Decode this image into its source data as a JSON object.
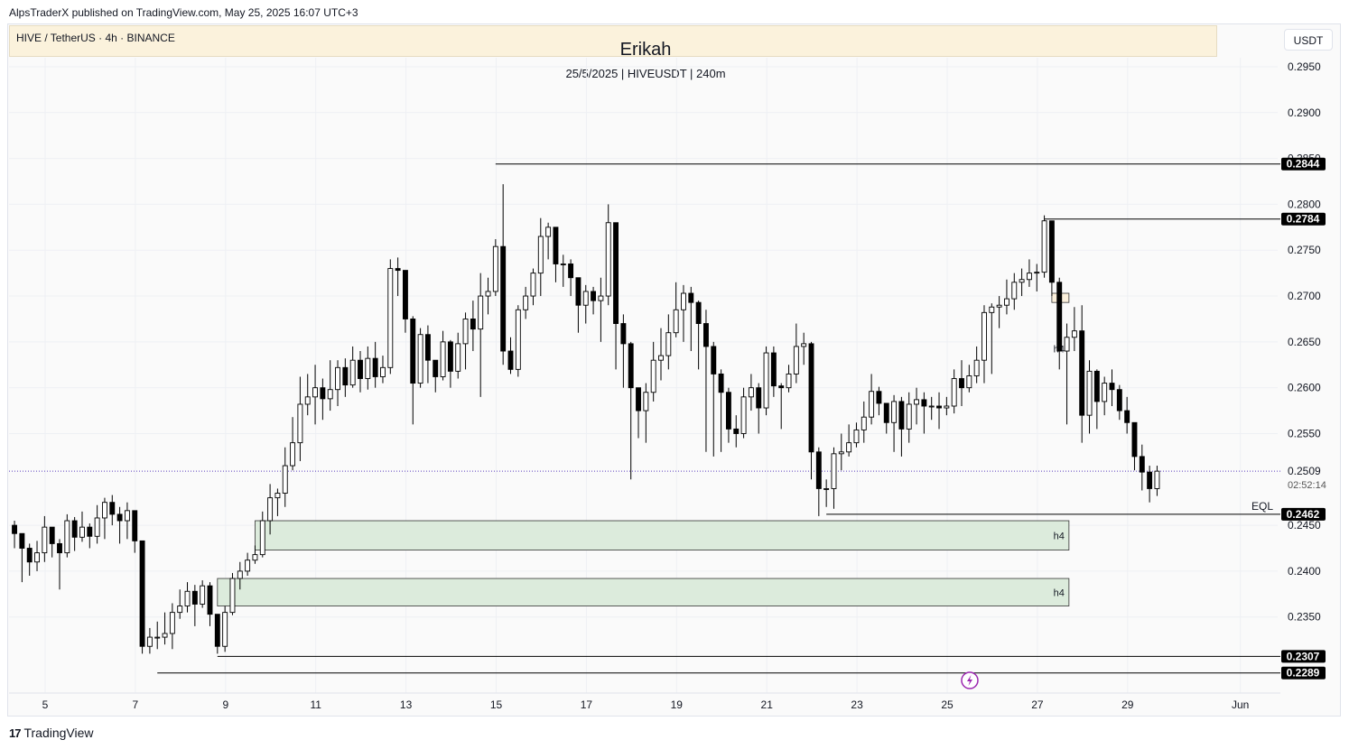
{
  "header": {
    "publisher": "AlpsTraderX published on TradingView.com, May 25, 2025 16:07 UTC+3",
    "symbol_info": "HIVE / TetherUS · 4h · BINANCE",
    "title": "Erikah",
    "subtitle": "25/5/2025 | HIVEUSDT | 240m",
    "currency": "USDT"
  },
  "footer": {
    "brand": "TradingView",
    "brand_logo": "17"
  },
  "colors": {
    "up_body": "#ffffff",
    "down_body": "#000000",
    "wick": "#000000",
    "demand_zone": "#dcebdc",
    "supply_zone": "#fbf0dc",
    "price_line": "#5a3ebd",
    "lightning": "#9c27b0"
  },
  "icons": {
    "lightning": "lightning-icon"
  },
  "chart_data": {
    "type": "candlestick",
    "timeframe": "4h",
    "x_tick_labels": [
      "5",
      "7",
      "9",
      "11",
      "13",
      "15",
      "17",
      "19",
      "21",
      "23",
      "25",
      "27",
      "29",
      "Jun"
    ],
    "y_tick_labels": [
      "0.2950",
      "0.2900",
      "0.2850",
      "0.2800",
      "0.2750",
      "0.2700",
      "0.2650",
      "0.2600",
      "0.2550",
      "0.2450",
      "0.2400",
      "0.2350"
    ],
    "ylim": [
      0.2262,
      0.2983
    ],
    "xlim_days": [
      4.0,
      31.5
    ],
    "last_price": "0.2509",
    "countdown": "02:52:14",
    "price_labels": [
      "0.2844",
      "0.2784",
      "0.2462",
      "0.2307",
      "0.2289"
    ],
    "eql_label": "EQL",
    "zone_label": "h4",
    "candles": [
      [
        0.245,
        0.2441,
        0.2455,
        0.2425
      ],
      [
        0.2441,
        0.2425,
        0.2441,
        0.2388
      ],
      [
        0.2425,
        0.241,
        0.243,
        0.2395
      ],
      [
        0.241,
        0.242,
        0.2433,
        0.24
      ],
      [
        0.242,
        0.2448,
        0.246,
        0.241
      ],
      [
        0.2448,
        0.243,
        0.2448,
        0.2415
      ],
      [
        0.243,
        0.242,
        0.2435,
        0.238
      ],
      [
        0.242,
        0.2455,
        0.2462,
        0.2415
      ],
      [
        0.2455,
        0.2437,
        0.2459,
        0.2422
      ],
      [
        0.2437,
        0.2448,
        0.2465,
        0.2432
      ],
      [
        0.2448,
        0.2438,
        0.2452,
        0.2425
      ],
      [
        0.2438,
        0.2458,
        0.2472,
        0.243
      ],
      [
        0.2458,
        0.2475,
        0.248,
        0.2435
      ],
      [
        0.2475,
        0.2462,
        0.2483,
        0.245
      ],
      [
        0.2462,
        0.2455,
        0.247,
        0.243
      ],
      [
        0.2455,
        0.2466,
        0.2475,
        0.2435
      ],
      [
        0.2466,
        0.2433,
        0.2466,
        0.242
      ],
      [
        0.2433,
        0.2318,
        0.2433,
        0.231
      ],
      [
        0.2318,
        0.2328,
        0.2338,
        0.231
      ],
      [
        0.2328,
        0.2328,
        0.2345,
        0.2315
      ],
      [
        0.2328,
        0.2332,
        0.2355,
        0.232
      ],
      [
        0.2332,
        0.2355,
        0.2365,
        0.2315
      ],
      [
        0.2355,
        0.2362,
        0.238,
        0.2348
      ],
      [
        0.2362,
        0.2378,
        0.2388,
        0.2355
      ],
      [
        0.2378,
        0.2364,
        0.2385,
        0.234
      ],
      [
        0.2364,
        0.2384,
        0.239,
        0.236
      ],
      [
        0.2384,
        0.2353,
        0.2388,
        0.234
      ],
      [
        0.2353,
        0.2318,
        0.2353,
        0.231
      ],
      [
        0.2318,
        0.2355,
        0.2362,
        0.2312
      ],
      [
        0.2355,
        0.2392,
        0.2398,
        0.2352
      ],
      [
        0.2392,
        0.24,
        0.241,
        0.238
      ],
      [
        0.24,
        0.2412,
        0.242,
        0.2395
      ],
      [
        0.2412,
        0.2418,
        0.2428,
        0.2408
      ],
      [
        0.2418,
        0.2455,
        0.2465,
        0.2415
      ],
      [
        0.2455,
        0.248,
        0.2495,
        0.244
      ],
      [
        0.248,
        0.2485,
        0.249,
        0.246
      ],
      [
        0.2485,
        0.2515,
        0.2535,
        0.247
      ],
      [
        0.2515,
        0.254,
        0.2568,
        0.251
      ],
      [
        0.254,
        0.2582,
        0.2612,
        0.252
      ],
      [
        0.2582,
        0.259,
        0.2615,
        0.257
      ],
      [
        0.259,
        0.26,
        0.2625,
        0.256
      ],
      [
        0.26,
        0.2588,
        0.261,
        0.2565
      ],
      [
        0.2588,
        0.2598,
        0.263,
        0.2575
      ],
      [
        0.2598,
        0.2622,
        0.263,
        0.258
      ],
      [
        0.2622,
        0.2603,
        0.2632,
        0.259
      ],
      [
        0.2603,
        0.263,
        0.2645,
        0.26
      ],
      [
        0.263,
        0.261,
        0.264,
        0.2595
      ],
      [
        0.261,
        0.2632,
        0.2645,
        0.2598
      ],
      [
        0.2632,
        0.2612,
        0.265,
        0.26
      ],
      [
        0.2612,
        0.2622,
        0.2635,
        0.2605
      ],
      [
        0.2622,
        0.273,
        0.274,
        0.2615
      ],
      [
        0.273,
        0.2728,
        0.2742,
        0.27
      ],
      [
        0.2728,
        0.2675,
        0.2728,
        0.266
      ],
      [
        0.2675,
        0.2605,
        0.2678,
        0.256
      ],
      [
        0.2605,
        0.2658,
        0.2665,
        0.26
      ],
      [
        0.2658,
        0.263,
        0.2668,
        0.2605
      ],
      [
        0.263,
        0.2612,
        0.263,
        0.2595
      ],
      [
        0.2612,
        0.265,
        0.2662,
        0.2608
      ],
      [
        0.265,
        0.2618,
        0.2652,
        0.26
      ],
      [
        0.2618,
        0.2648,
        0.266,
        0.261
      ],
      [
        0.2648,
        0.2675,
        0.2682,
        0.262
      ],
      [
        0.2675,
        0.2664,
        0.2695,
        0.264
      ],
      [
        0.2664,
        0.27,
        0.2725,
        0.259
      ],
      [
        0.27,
        0.2705,
        0.272,
        0.268
      ],
      [
        0.2705,
        0.2754,
        0.2762,
        0.27
      ],
      [
        0.2754,
        0.264,
        0.2822,
        0.2625
      ],
      [
        0.264,
        0.262,
        0.2655,
        0.2615
      ],
      [
        0.262,
        0.2685,
        0.269,
        0.2612
      ],
      [
        0.2685,
        0.27,
        0.271,
        0.2675
      ],
      [
        0.27,
        0.2725,
        0.273,
        0.269
      ],
      [
        0.2725,
        0.2765,
        0.2785,
        0.27
      ],
      [
        0.2765,
        0.2775,
        0.278,
        0.274
      ],
      [
        0.2775,
        0.2735,
        0.2775,
        0.2715
      ],
      [
        0.2735,
        0.2735,
        0.2745,
        0.271
      ],
      [
        0.2735,
        0.272,
        0.274,
        0.27
      ],
      [
        0.272,
        0.269,
        0.272,
        0.266
      ],
      [
        0.269,
        0.2705,
        0.2712,
        0.267
      ],
      [
        0.2705,
        0.2695,
        0.271,
        0.268
      ],
      [
        0.2695,
        0.27,
        0.272,
        0.265
      ],
      [
        0.27,
        0.278,
        0.28,
        0.269
      ],
      [
        0.278,
        0.267,
        0.278,
        0.262
      ],
      [
        0.267,
        0.2648,
        0.268,
        0.26
      ],
      [
        0.2648,
        0.26,
        0.265,
        0.25
      ],
      [
        0.26,
        0.2575,
        0.26,
        0.2545
      ],
      [
        0.2575,
        0.2595,
        0.2605,
        0.254
      ],
      [
        0.2595,
        0.263,
        0.265,
        0.2585
      ],
      [
        0.263,
        0.2635,
        0.2665,
        0.2608
      ],
      [
        0.2635,
        0.266,
        0.268,
        0.262
      ],
      [
        0.266,
        0.2685,
        0.2715,
        0.2655
      ],
      [
        0.2685,
        0.2703,
        0.2712,
        0.265
      ],
      [
        0.2703,
        0.2693,
        0.271,
        0.264
      ],
      [
        0.2693,
        0.267,
        0.2695,
        0.262
      ],
      [
        0.267,
        0.2645,
        0.2685,
        0.253
      ],
      [
        0.2645,
        0.2615,
        0.265,
        0.2525
      ],
      [
        0.2615,
        0.2595,
        0.262,
        0.253
      ],
      [
        0.2595,
        0.2555,
        0.26,
        0.254
      ],
      [
        0.2555,
        0.255,
        0.257,
        0.2535
      ],
      [
        0.255,
        0.259,
        0.26,
        0.2545
      ],
      [
        0.259,
        0.26,
        0.2615,
        0.2575
      ],
      [
        0.26,
        0.2578,
        0.2605,
        0.255
      ],
      [
        0.2578,
        0.2638,
        0.2645,
        0.257
      ],
      [
        0.2638,
        0.2602,
        0.2645,
        0.259
      ],
      [
        0.2602,
        0.26,
        0.2605,
        0.2555
      ],
      [
        0.26,
        0.2615,
        0.2625,
        0.2595
      ],
      [
        0.2615,
        0.2645,
        0.267,
        0.2605
      ],
      [
        0.2645,
        0.2648,
        0.266,
        0.2625
      ],
      [
        0.2648,
        0.253,
        0.265,
        0.25
      ],
      [
        0.253,
        0.249,
        0.2535,
        0.246
      ],
      [
        0.249,
        0.249,
        0.25,
        0.247
      ],
      [
        0.249,
        0.2528,
        0.2535,
        0.2468
      ],
      [
        0.2528,
        0.253,
        0.255,
        0.251
      ],
      [
        0.253,
        0.254,
        0.256,
        0.2525
      ],
      [
        0.254,
        0.2554,
        0.2562,
        0.2535
      ],
      [
        0.2554,
        0.2568,
        0.2585,
        0.254
      ],
      [
        0.2568,
        0.2596,
        0.2615,
        0.256
      ],
      [
        0.2596,
        0.2583,
        0.2601,
        0.257
      ],
      [
        0.2583,
        0.2562,
        0.2583,
        0.255
      ],
      [
        0.2562,
        0.2585,
        0.2592,
        0.253
      ],
      [
        0.2585,
        0.2555,
        0.259,
        0.2525
      ],
      [
        0.2555,
        0.2582,
        0.2595,
        0.254
      ],
      [
        0.2582,
        0.2587,
        0.26,
        0.256
      ],
      [
        0.2587,
        0.258,
        0.2595,
        0.255
      ],
      [
        0.258,
        0.258,
        0.259,
        0.2565
      ],
      [
        0.258,
        0.2578,
        0.2595,
        0.2555
      ],
      [
        0.2578,
        0.258,
        0.259,
        0.257
      ],
      [
        0.258,
        0.261,
        0.262,
        0.2572
      ],
      [
        0.261,
        0.26,
        0.263,
        0.258
      ],
      [
        0.26,
        0.2613,
        0.2625,
        0.2595
      ],
      [
        0.2613,
        0.263,
        0.2645,
        0.2605
      ],
      [
        0.263,
        0.2682,
        0.269,
        0.2605
      ],
      [
        0.2682,
        0.2688,
        0.2692,
        0.2615
      ],
      [
        0.2688,
        0.269,
        0.27,
        0.2665
      ],
      [
        0.269,
        0.2697,
        0.2718,
        0.268
      ],
      [
        0.2697,
        0.2715,
        0.2725,
        0.2685
      ],
      [
        0.2715,
        0.2718,
        0.273,
        0.27
      ],
      [
        0.2718,
        0.2725,
        0.274,
        0.271
      ],
      [
        0.2725,
        0.2726,
        0.2735,
        0.2705
      ],
      [
        0.2726,
        0.2782,
        0.2788,
        0.272
      ],
      [
        0.2782,
        0.2715,
        0.2782,
        0.27
      ],
      [
        0.2715,
        0.264,
        0.272,
        0.262
      ],
      [
        0.264,
        0.2655,
        0.267,
        0.256
      ],
      [
        0.2655,
        0.2662,
        0.2688,
        0.264
      ],
      [
        0.2662,
        0.257,
        0.269,
        0.254
      ],
      [
        0.257,
        0.2618,
        0.263,
        0.255
      ],
      [
        0.2618,
        0.2585,
        0.262,
        0.2555
      ],
      [
        0.2585,
        0.2605,
        0.2612,
        0.257
      ],
      [
        0.2605,
        0.2598,
        0.262,
        0.258
      ],
      [
        0.2598,
        0.2575,
        0.2603,
        0.2565
      ],
      [
        0.2575,
        0.2562,
        0.259,
        0.255
      ],
      [
        0.2562,
        0.2525,
        0.2562,
        0.251
      ],
      [
        0.2525,
        0.2508,
        0.2538,
        0.2488
      ],
      [
        0.2508,
        0.249,
        0.2515,
        0.2475
      ],
      [
        0.249,
        0.2509,
        0.2515,
        0.2482
      ]
    ],
    "levels": [
      {
        "price": 0.2844,
        "from_candle": 64
      },
      {
        "price": 0.2784,
        "from_candle": 137
      },
      {
        "price": 0.2462,
        "from_candle": 108
      },
      {
        "price": 0.2307,
        "from_candle": 27
      },
      {
        "price": 0.2289,
        "from_candle": 19
      }
    ],
    "zones": [
      {
        "kind": "supply",
        "top": 0.2703,
        "bottom": 0.2693,
        "from_candle": 138
      },
      {
        "kind": "supply",
        "top": 0.265,
        "bottom": 0.2635,
        "from_candle": 142,
        "label": true
      },
      {
        "kind": "supply",
        "top": 0.2592,
        "bottom": 0.2586,
        "from_candle": 145
      },
      {
        "kind": "supply",
        "top": 0.256,
        "bottom": 0.2557,
        "from_candle": 147
      },
      {
        "kind": "demand",
        "top": 0.2455,
        "bottom": 0.2423,
        "from_candle": 32,
        "label": true
      },
      {
        "kind": "demand",
        "top": 0.2392,
        "bottom": 0.2362,
        "from_candle": 27,
        "label": true
      }
    ],
    "zones_end_day": 27.7,
    "first_candle_day": 4.0
  }
}
